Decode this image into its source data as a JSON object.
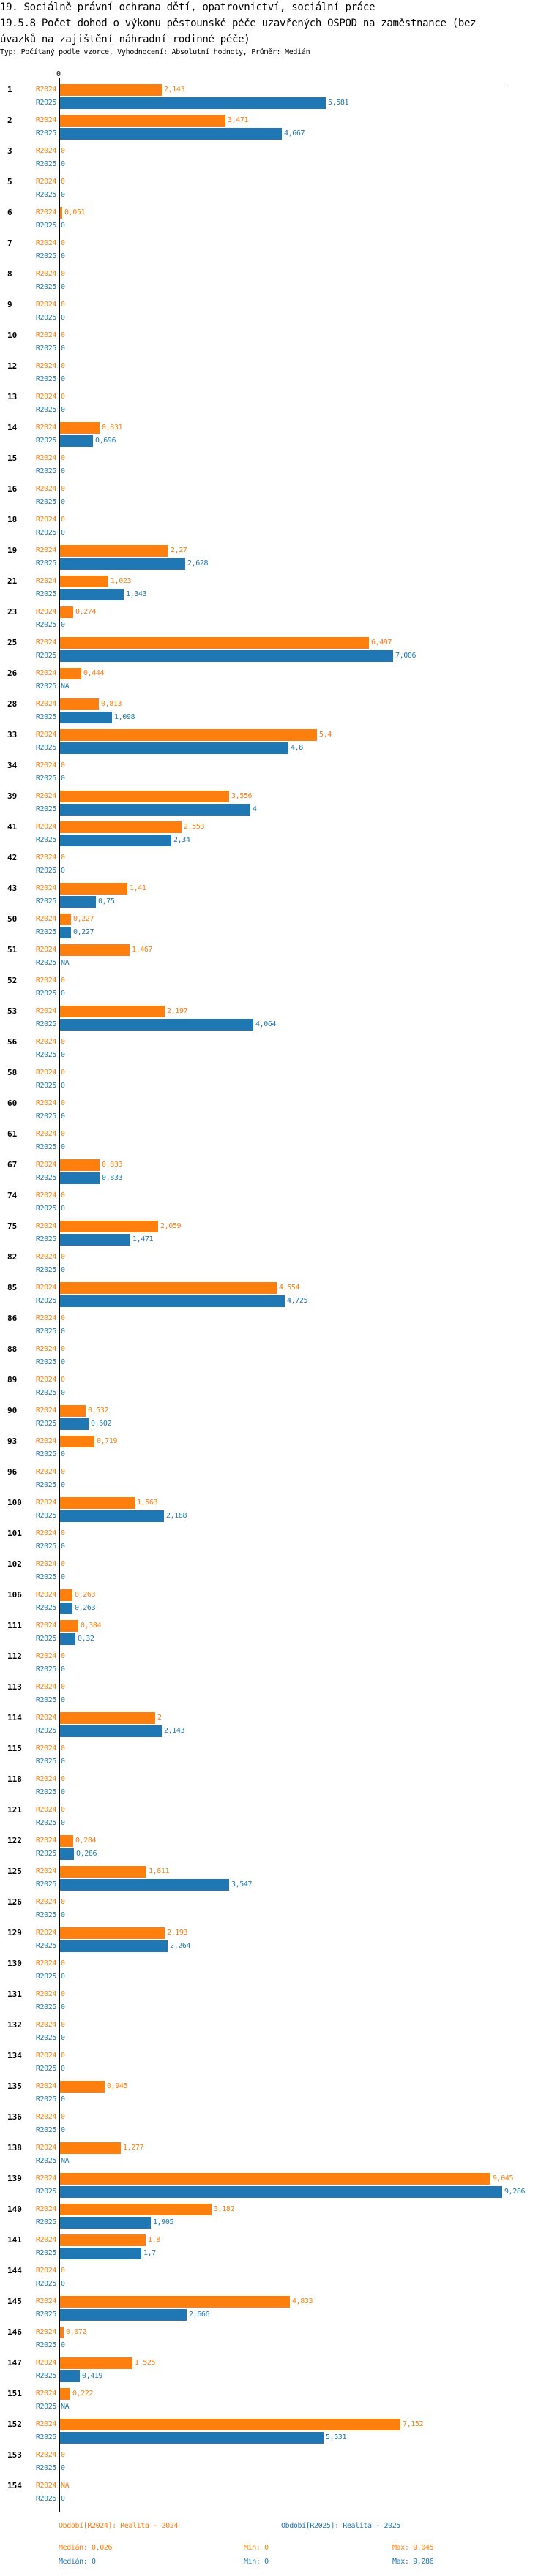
{
  "header": {
    "title_line1": "19. Sociálně právní ochrana dětí, opatrovnictví, sociální práce",
    "title_line2": "19.5.8 Počet dohod o výkonu pěstounské péče uzavřených OSPOD na zaměstnance (bez",
    "title_line3": "úvazků na zajištění náhradní rodinné péče)",
    "subtitle": "Typ: Počítaný podle vzorce, Vyhodnocení: Absolutní hodnoty, Průměr: Medián"
  },
  "colors": {
    "R2024": "#ff7f0e",
    "R2025": "#1f77b4"
  },
  "chart_data": {
    "type": "bar",
    "orientation": "horizontal",
    "xlim": [
      0,
      9.3
    ],
    "x_tick_labels": [
      "0"
    ],
    "series_names": [
      "R2024",
      "R2025"
    ],
    "rows": [
      [
        "1",
        "2,143",
        "5,581"
      ],
      [
        "2",
        "3,471",
        "4,667"
      ],
      [
        "3",
        "0",
        "0"
      ],
      [
        "5",
        "0",
        "0"
      ],
      [
        "6",
        "0,051",
        "0"
      ],
      [
        "7",
        "0",
        "0"
      ],
      [
        "8",
        "0",
        "0"
      ],
      [
        "9",
        "0",
        "0"
      ],
      [
        "10",
        "0",
        "0"
      ],
      [
        "12",
        "0",
        "0"
      ],
      [
        "13",
        "0",
        "0"
      ],
      [
        "14",
        "0,831",
        "0,696"
      ],
      [
        "15",
        "0",
        "0"
      ],
      [
        "16",
        "0",
        "0"
      ],
      [
        "18",
        "0",
        "0"
      ],
      [
        "19",
        "2,27",
        "2,628"
      ],
      [
        "21",
        "1,023",
        "1,343"
      ],
      [
        "23",
        "0,274",
        "0"
      ],
      [
        "25",
        "6,497",
        "7,006"
      ],
      [
        "26",
        "0,444",
        "NA"
      ],
      [
        "28",
        "0,813",
        "1,098"
      ],
      [
        "33",
        "5,4",
        "4,8"
      ],
      [
        "34",
        "0",
        "0"
      ],
      [
        "39",
        "3,556",
        "4"
      ],
      [
        "41",
        "2,553",
        "2,34"
      ],
      [
        "42",
        "0",
        "0"
      ],
      [
        "43",
        "1,41",
        "0,75"
      ],
      [
        "50",
        "0,227",
        "0,227"
      ],
      [
        "51",
        "1,467",
        "NA"
      ],
      [
        "52",
        "0",
        "0"
      ],
      [
        "53",
        "2,197",
        "4,064"
      ],
      [
        "56",
        "0",
        "0"
      ],
      [
        "58",
        "0",
        "0"
      ],
      [
        "60",
        "0",
        "0"
      ],
      [
        "61",
        "0",
        "0"
      ],
      [
        "67",
        "0,833",
        "0,833"
      ],
      [
        "74",
        "0",
        "0"
      ],
      [
        "75",
        "2,059",
        "1,471"
      ],
      [
        "82",
        "0",
        "0"
      ],
      [
        "85",
        "4,554",
        "4,725"
      ],
      [
        "86",
        "0",
        "0"
      ],
      [
        "88",
        "0",
        "0"
      ],
      [
        "89",
        "0",
        "0"
      ],
      [
        "90",
        "0,532",
        "0,602"
      ],
      [
        "93",
        "0,719",
        "0"
      ],
      [
        "96",
        "0",
        "0"
      ],
      [
        "100",
        "1,563",
        "2,188"
      ],
      [
        "101",
        "0",
        "0"
      ],
      [
        "102",
        "0",
        "0"
      ],
      [
        "106",
        "0,263",
        "0,263"
      ],
      [
        "111",
        "0,384",
        "0,32"
      ],
      [
        "112",
        "0",
        "0"
      ],
      [
        "113",
        "0",
        "0"
      ],
      [
        "114",
        "2",
        "2,143"
      ],
      [
        "115",
        "0",
        "0"
      ],
      [
        "118",
        "0",
        "0"
      ],
      [
        "121",
        "0",
        "0"
      ],
      [
        "122",
        "0,284",
        "0,286"
      ],
      [
        "125",
        "1,811",
        "3,547"
      ],
      [
        "126",
        "0",
        "0"
      ],
      [
        "129",
        "2,193",
        "2,264"
      ],
      [
        "130",
        "0",
        "0"
      ],
      [
        "131",
        "0",
        "0"
      ],
      [
        "132",
        "0",
        "0"
      ],
      [
        "134",
        "0",
        "0"
      ],
      [
        "135",
        "0,945",
        "0"
      ],
      [
        "136",
        "0",
        "0"
      ],
      [
        "138",
        "1,277",
        "NA"
      ],
      [
        "139",
        "9,045",
        "9,286"
      ],
      [
        "140",
        "3,182",
        "1,905"
      ],
      [
        "141",
        "1,8",
        "1,7"
      ],
      [
        "144",
        "0",
        "0"
      ],
      [
        "145",
        "4,833",
        "2,666"
      ],
      [
        "146",
        "0,072",
        "0"
      ],
      [
        "147",
        "1,525",
        "0,419"
      ],
      [
        "151",
        "0,222",
        "NA"
      ],
      [
        "152",
        "7,152",
        "5,531"
      ],
      [
        "153",
        "0",
        "0"
      ],
      [
        "154",
        "NA",
        "0"
      ]
    ]
  },
  "legend": {
    "r2024": "Období[R2024]: Realita - 2024",
    "r2025": "Období[R2025]: Realita - 2025"
  },
  "stats": {
    "r2024": {
      "median": "Medián: 0,026",
      "min": "Min: 0",
      "max": "Max: 9,045"
    },
    "r2025": {
      "median": "Medián: 0",
      "min": "Min: 0",
      "max": "Max: 9,286"
    }
  }
}
